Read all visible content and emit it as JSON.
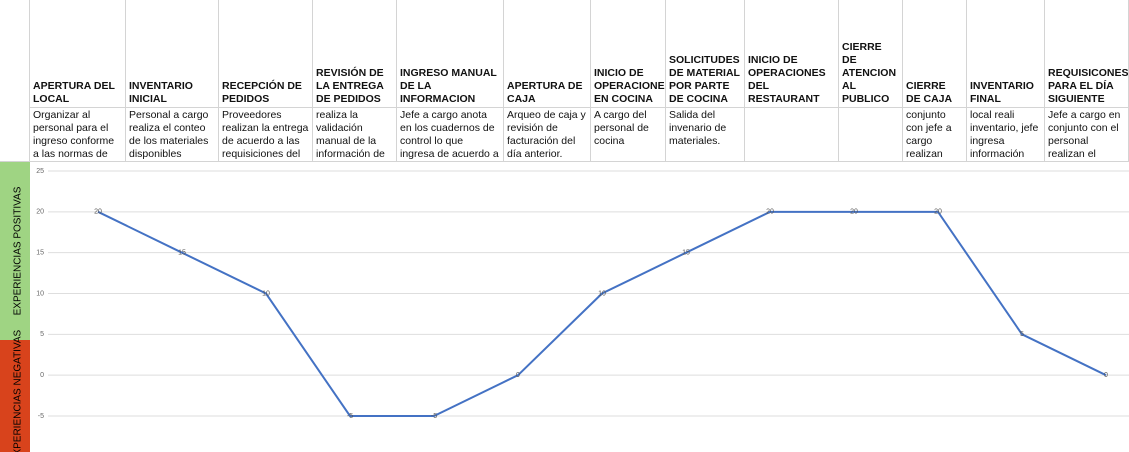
{
  "table": {
    "columns": [
      {
        "header": "APERTURA DEL LOCAL",
        "description": "Organizar al personal para el ingreso conforme a las normas de bioseguridad"
      },
      {
        "header": "INVENTARIO INICIAL",
        "description": "Personal a cargo realiza el conteo de los materiales disponibles"
      },
      {
        "header": "RECEPCIÓN DE PEDIDOS",
        "description": "Proveedores realizan la entrega de acuerdo a las requisiciones del restaurant"
      },
      {
        "header": "REVISIÓN DE LA ENTREGA DE PEDIDOS",
        "description": "realiza la validación manual de la información de la factura vs. lo"
      },
      {
        "header": "INGRESO MANUAL DE LA INFORMACION",
        "description": "Jefe a cargo anota en los cuadernos de control lo que ingresa de acuerdo a la facturación."
      },
      {
        "header": "APERTURA DE CAJA",
        "description": "Arqueo de caja y revisión de facturación del día anterior."
      },
      {
        "header": "INICIO DE OPERACIONES EN COCINA",
        "description": "A cargo del personal de cocina"
      },
      {
        "header": "SOLICITUDES DE MATERIAL POR PARTE DE COCINA",
        "description": "Salida del invenario de materiales."
      },
      {
        "header": "INICIO DE OPERACIONES DEL RESTAURANT"
      },
      {
        "header": "CIERRE DE ATENCION AL PUBLICO"
      },
      {
        "header": "CIERRE DE CAJA",
        "description": "conjunto con jefe a cargo realizan arqueo."
      },
      {
        "header": "INVENTARIO FINAL",
        "description": "local reali inventario, jefe ingresa información manualmente."
      },
      {
        "header": "REQUISICONES PARA EL DÍA SIGUIENTE",
        "description": "Jefe a cargo en conjunto con el personal realizan el listado."
      }
    ],
    "positive_label": "EXPERIENCIAS POSITIVAS",
    "negative_label": "EXPERIENCIAS NEGATIVAS"
  },
  "chart_data": {
    "type": "line",
    "values": [
      20,
      15,
      10,
      -5,
      -5,
      0,
      10,
      15,
      20,
      20,
      20,
      5,
      0
    ],
    "color": "#4472c4",
    "ylim": [
      -5,
      25
    ],
    "yticks": [
      -5,
      0,
      5,
      10,
      15,
      20,
      25
    ],
    "grid": true,
    "data_labels": true
  }
}
